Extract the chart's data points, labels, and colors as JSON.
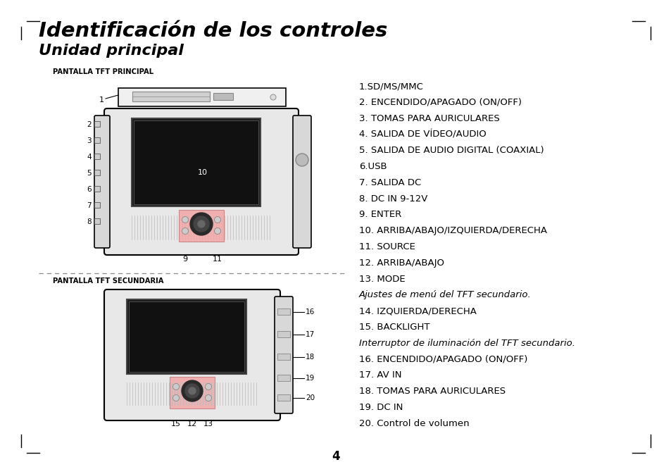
{
  "title1": "Identificación de los controles",
  "title2": "Unidad principal",
  "label_pantalla1": "PANTALLA TFT PRINCIPAL",
  "label_pantalla2": "PANTALLA TFT SECUNDARIA",
  "right_items": [
    "1.SD/MS/MMC",
    "2. ENCENDIDO/APAGADO (ON/OFF)",
    "3. TOMAS PARA AURICULARES",
    "4. SALIDA DE VÍDEO/AUDIO",
    "5. SALIDA DE AUDIO DIGITAL (COAXIAL)",
    "6.USB",
    "7. SALIDA DC",
    "8. DC IN 9-12V",
    "9. ENTER",
    "10. ARRIBA/ABAJO/IZQUIERDA/DERECHA",
    "11. SOURCE",
    "12. ARRIBA/ABAJO",
    "13. MODE",
    "Ajustes de menú del TFT secundario.",
    "14. IZQUIERDA/DERECHA",
    "15. BACKLIGHT",
    "Interruptor de iluminación del TFT secundario.",
    "16. ENCENDIDO/APAGADO (ON/OFF)",
    "17. AV IN",
    "18. TOMAS PARA AURICULARES",
    "19. DC IN",
    "20. Control de volumen"
  ],
  "italic_indices": [
    13,
    16
  ],
  "page_number": "4",
  "bg_color": "#ffffff"
}
